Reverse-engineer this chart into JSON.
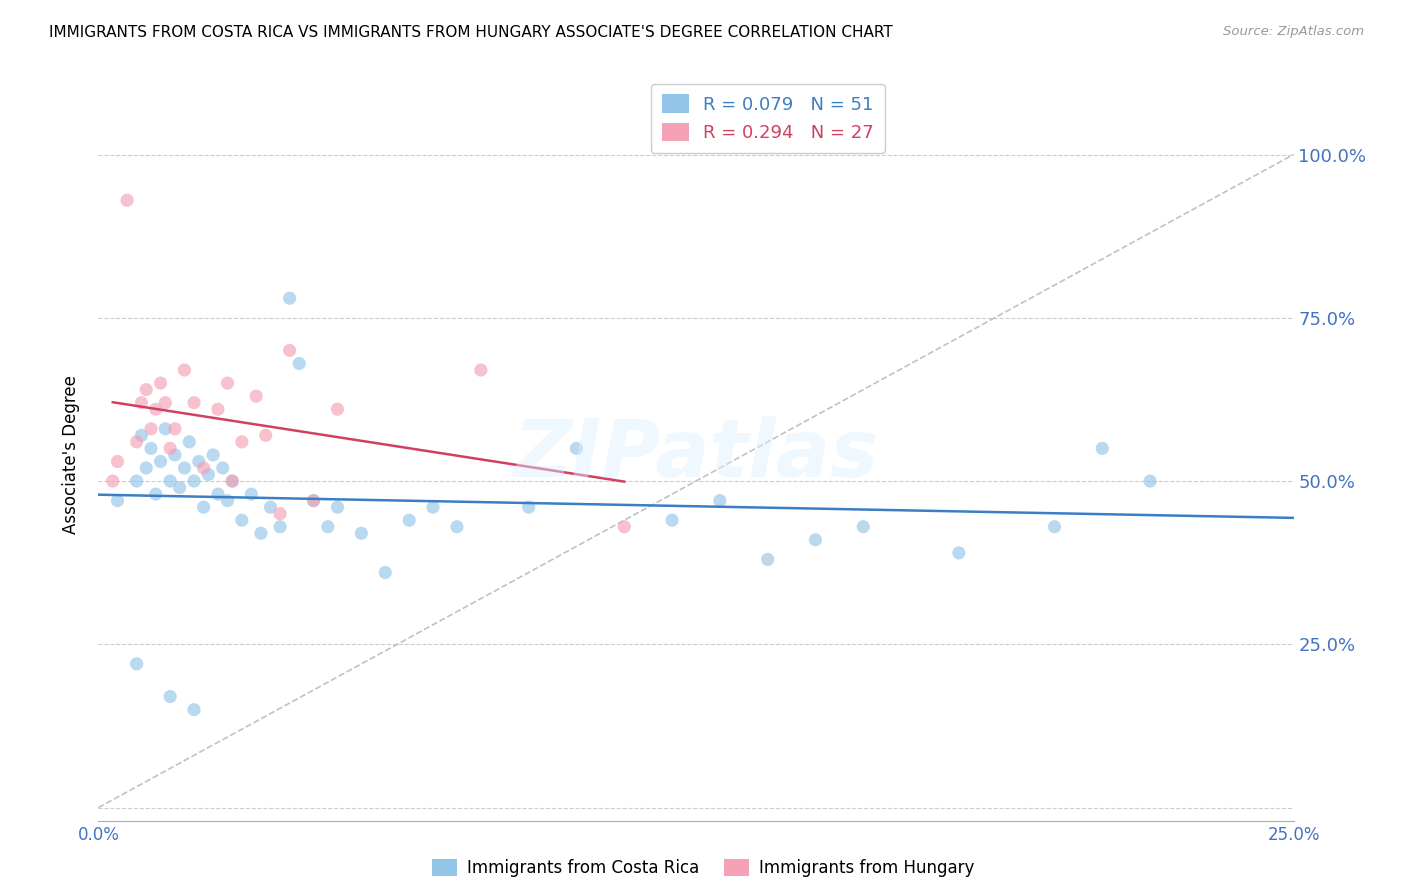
{
  "title": "IMMIGRANTS FROM COSTA RICA VS IMMIGRANTS FROM HUNGARY ASSOCIATE'S DEGREE CORRELATION CHART",
  "source": "Source: ZipAtlas.com",
  "ylabel": "Associate's Degree",
  "xlim": [
    0.0,
    0.25
  ],
  "ylim": [
    -0.02,
    1.1
  ],
  "yticks": [
    0.0,
    0.25,
    0.5,
    0.75,
    1.0
  ],
  "ytick_labels": [
    "",
    "25.0%",
    "50.0%",
    "75.0%",
    "100.0%"
  ],
  "xticks": [
    0.0,
    0.05,
    0.1,
    0.15,
    0.2,
    0.25
  ],
  "xtick_labels": [
    "0.0%",
    "",
    "",
    "",
    "",
    "25.0%"
  ],
  "legend1_label": "Immigrants from Costa Rica",
  "legend2_label": "Immigrants from Hungary",
  "r_cr": 0.079,
  "n_cr": 51,
  "r_hu": 0.294,
  "n_hu": 27,
  "color_cr": "#92C5E8",
  "color_hu": "#F4A0B5",
  "line_cr": "#3B7EC4",
  "line_hu": "#D04060",
  "diag_color": "#BBBBBB",
  "watermark": "ZIPatlas",
  "scatter_alpha": 0.65,
  "scatter_size": 90,
  "costa_rica_x": [
    0.004,
    0.008,
    0.009,
    0.01,
    0.011,
    0.012,
    0.013,
    0.014,
    0.015,
    0.016,
    0.017,
    0.018,
    0.019,
    0.02,
    0.021,
    0.022,
    0.023,
    0.024,
    0.025,
    0.026,
    0.027,
    0.028,
    0.03,
    0.032,
    0.034,
    0.036,
    0.038,
    0.04,
    0.042,
    0.045,
    0.048,
    0.05,
    0.055,
    0.06,
    0.065,
    0.07,
    0.075,
    0.09,
    0.1,
    0.12,
    0.13,
    0.14,
    0.15,
    0.16,
    0.18,
    0.2,
    0.21,
    0.22,
    0.008,
    0.015,
    0.02
  ],
  "costa_rica_y": [
    0.47,
    0.5,
    0.57,
    0.52,
    0.55,
    0.48,
    0.53,
    0.58,
    0.5,
    0.54,
    0.49,
    0.52,
    0.56,
    0.5,
    0.53,
    0.46,
    0.51,
    0.54,
    0.48,
    0.52,
    0.47,
    0.5,
    0.44,
    0.48,
    0.42,
    0.46,
    0.43,
    0.78,
    0.68,
    0.47,
    0.43,
    0.46,
    0.42,
    0.36,
    0.44,
    0.46,
    0.43,
    0.46,
    0.55,
    0.44,
    0.47,
    0.38,
    0.41,
    0.43,
    0.39,
    0.43,
    0.55,
    0.5,
    0.22,
    0.17,
    0.15
  ],
  "hungary_x": [
    0.003,
    0.004,
    0.006,
    0.008,
    0.009,
    0.01,
    0.011,
    0.012,
    0.013,
    0.014,
    0.015,
    0.016,
    0.018,
    0.02,
    0.022,
    0.025,
    0.027,
    0.028,
    0.03,
    0.033,
    0.035,
    0.038,
    0.04,
    0.045,
    0.05,
    0.08,
    0.11
  ],
  "hungary_y": [
    0.5,
    0.53,
    0.93,
    0.56,
    0.62,
    0.64,
    0.58,
    0.61,
    0.65,
    0.62,
    0.55,
    0.58,
    0.67,
    0.62,
    0.52,
    0.61,
    0.65,
    0.5,
    0.56,
    0.63,
    0.57,
    0.45,
    0.7,
    0.47,
    0.61,
    0.67,
    0.43
  ]
}
